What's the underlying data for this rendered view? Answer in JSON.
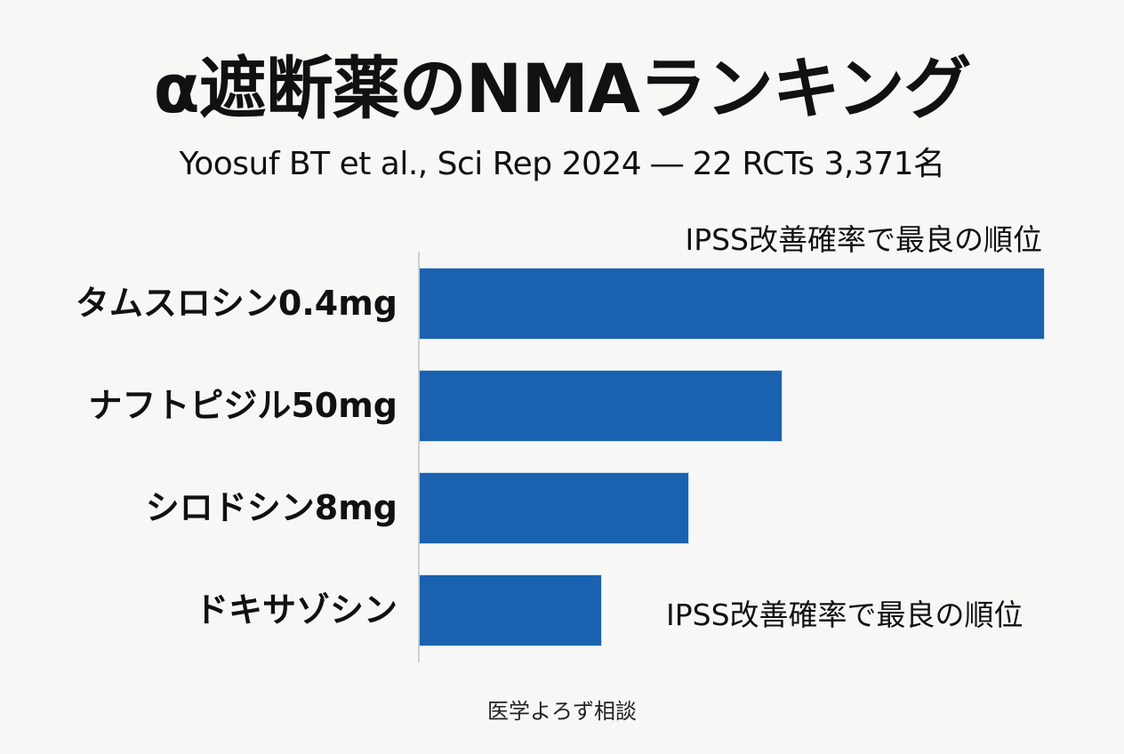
{
  "header": {
    "title": "α遮断薬のNMAランキング",
    "subtitle": "Yoosuf BT et al., Sci Rep 2024 ― 22 RCTs 3,371名"
  },
  "annotations": {
    "top": "IPSS改善確率で最良の順位",
    "bottom": "IPSS改善確率で最良の順位"
  },
  "footer": {
    "text": "医学よろず相談"
  },
  "colors": {
    "bar": "#1a62b0",
    "background": "#f7f7f5",
    "axis": "#cfcfcf"
  },
  "chart_data": {
    "type": "bar",
    "orientation": "horizontal",
    "title": "α遮断薬のNMAランキング",
    "subtitle": "Yoosuf BT et al., Sci Rep 2024 ― 22 RCTs 3,371名",
    "xlabel": "",
    "ylabel": "",
    "categories": [
      "タムスロシン0.4mg",
      "ナフトピジル50mg",
      "シロドシン8mg",
      "ドキサゾシン"
    ],
    "values": [
      100,
      58,
      43,
      29
    ],
    "value_note": "Relative bar lengths (longest = 100); no numeric axis shown",
    "xlim": [
      0,
      100
    ],
    "grid": false,
    "legend": null,
    "annotations": [
      "IPSS改善確率で最良の順位",
      "IPSS改善確率で最良の順位"
    ],
    "source": "医学よろず相談"
  }
}
